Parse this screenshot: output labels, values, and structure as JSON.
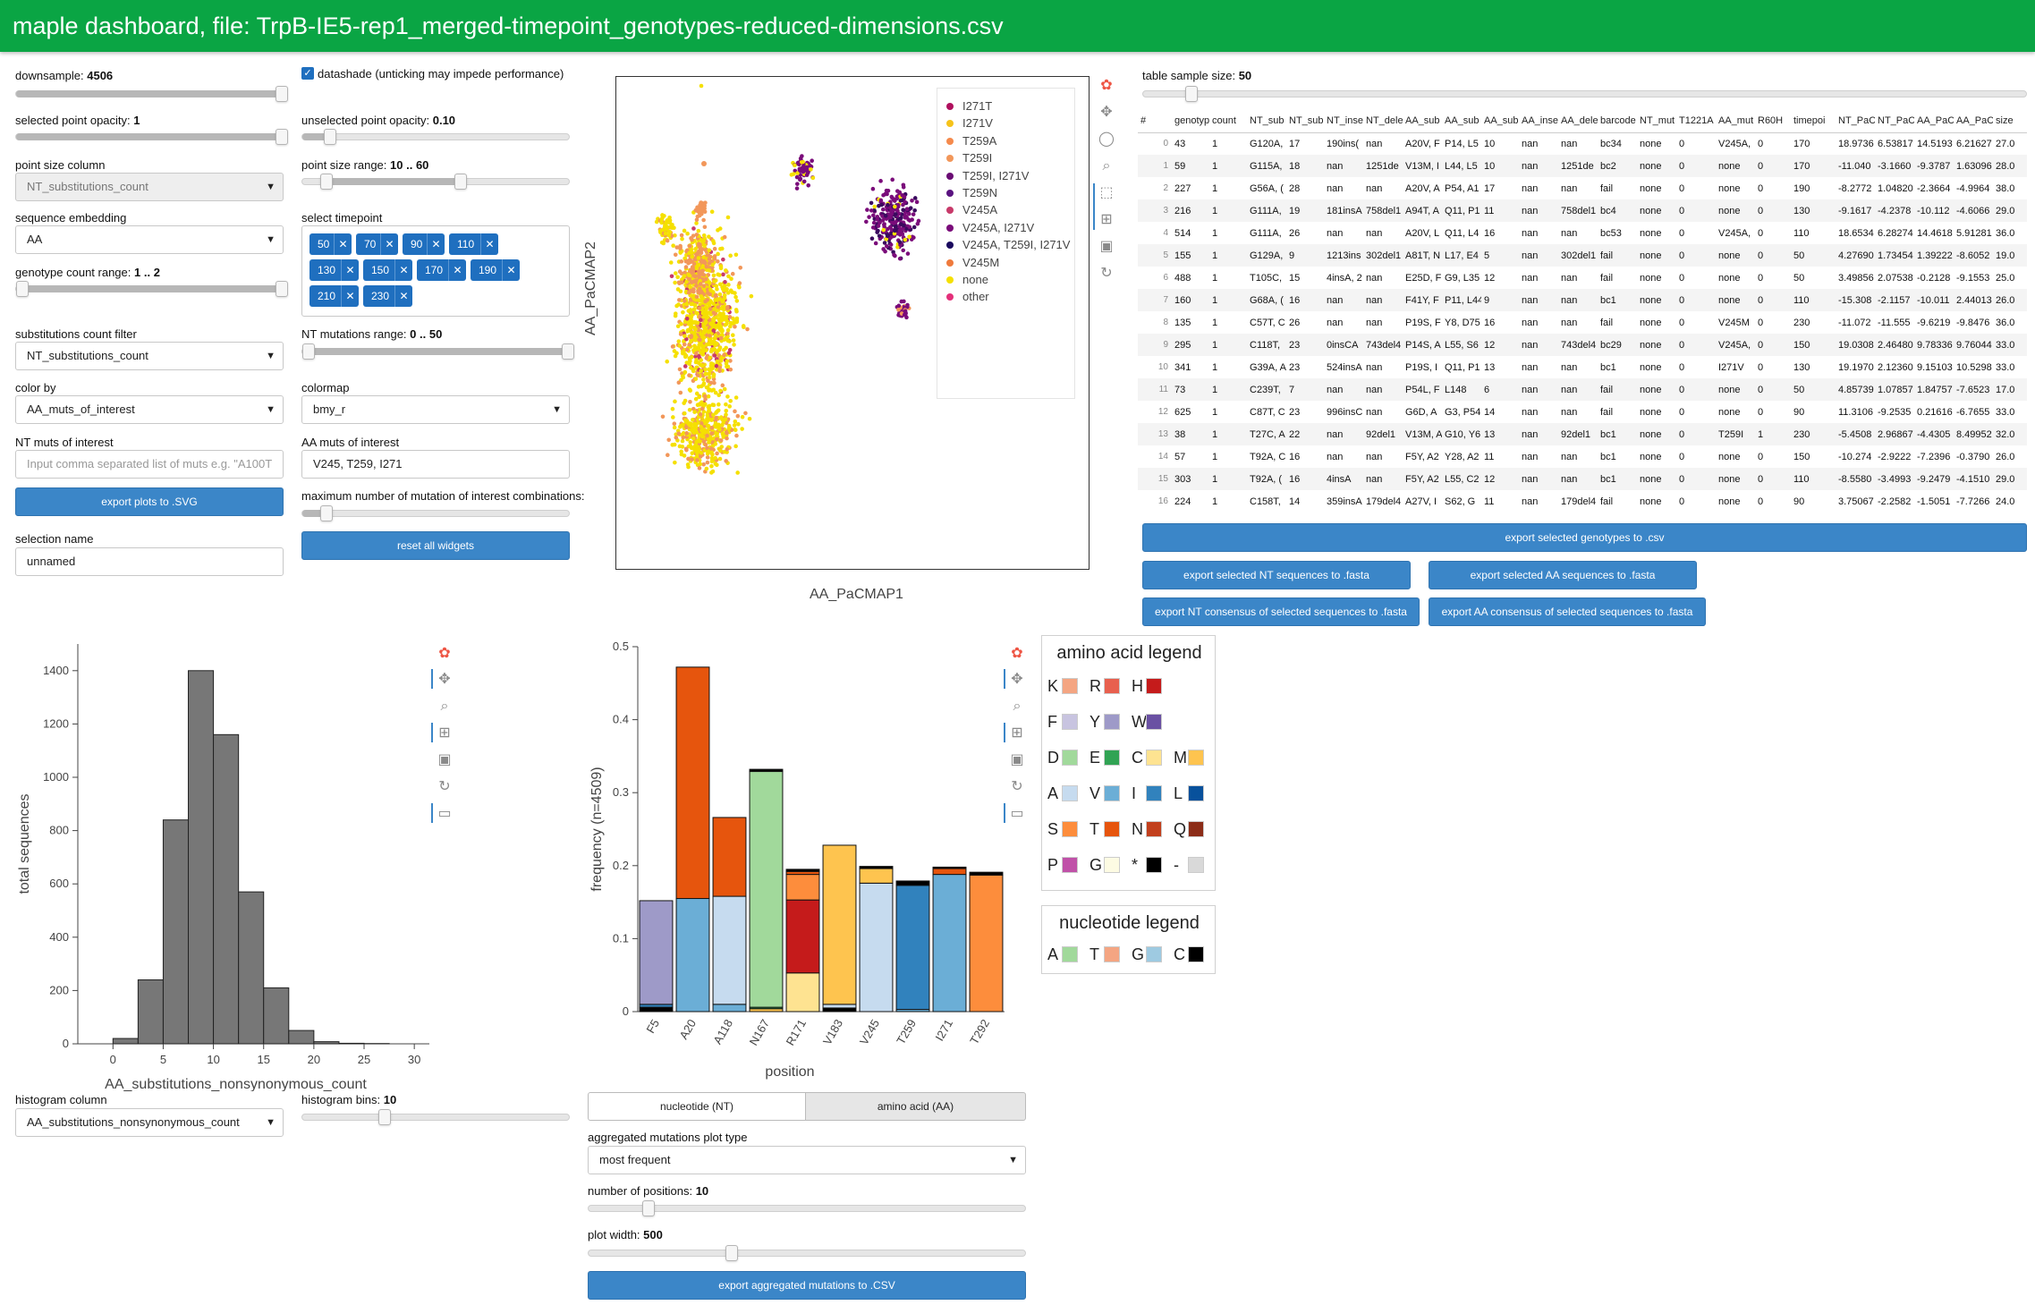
{
  "header": {
    "title": "maple dashboard, file: TrpB-IE5-rep1_merged-timepoint_genotypes-reduced-dimensions.csv"
  },
  "controls": {
    "downsample": {
      "label": "downsample:",
      "value": "4506",
      "fraction": 1.0
    },
    "datashade": {
      "label": "datashade (unticking may impede performance)",
      "checked": true
    },
    "selected_opacity": {
      "label": "selected point opacity:",
      "value": "1",
      "fraction": 1.0
    },
    "unselected_opacity": {
      "label": "unselected point opacity:",
      "value": "0.10",
      "fraction": 0.1
    },
    "point_size_column": {
      "label": "point size column",
      "value": "NT_substitutions_count"
    },
    "point_size_range": {
      "label": "point size range:",
      "value": "10 .. 60"
    },
    "sequence_embedding": {
      "label": "sequence embedding",
      "value": "AA"
    },
    "select_timepoint": {
      "label": "select timepoint",
      "chips": [
        "50",
        "70",
        "90",
        "110",
        "130",
        "150",
        "170",
        "190",
        "210",
        "230"
      ]
    },
    "genotype_count_range": {
      "label": "genotype count range:",
      "value": "1 .. 2"
    },
    "nt_mutations_range": {
      "label": "NT mutations range:",
      "value": "0 .. 50"
    },
    "substitutions_filter": {
      "label": "substitutions count filter",
      "value": "NT_substitutions_count"
    },
    "color_by": {
      "label": "color by",
      "value": "AA_muts_of_interest"
    },
    "colormap": {
      "label": "colormap",
      "value": "bmy_r"
    },
    "nt_muts": {
      "label": "NT muts of interest",
      "placeholder": "Input comma separated list of muts e.g. \"A100T"
    },
    "aa_muts": {
      "label": "AA muts of interest",
      "value": "V245, T259, I271"
    },
    "export_svg": "export plots to .SVG",
    "max_combos": {
      "label": "maximum number of mutation of interest combinations:"
    },
    "selection_name": {
      "label": "selection name",
      "value": "unnamed"
    },
    "reset": "reset all widgets"
  },
  "scatter": {
    "xlabel": "AA_PaCMAP1",
    "ylabel": "AA_PaCMAP2",
    "legend": [
      {
        "label": "I271T",
        "color": "#b0105e"
      },
      {
        "label": "I271V",
        "color": "#f6c31a"
      },
      {
        "label": "T259A",
        "color": "#f58a4c"
      },
      {
        "label": "T259I",
        "color": "#f2975a"
      },
      {
        "label": "T259I, I271V",
        "color": "#6a0d74"
      },
      {
        "label": "T259N",
        "color": "#5a1380"
      },
      {
        "label": "V245A",
        "color": "#c83a6a"
      },
      {
        "label": "V245A, I271V",
        "color": "#7a0c7a"
      },
      {
        "label": "V245A, T259I, I271V",
        "color": "#1a0a5e"
      },
      {
        "label": "V245M",
        "color": "#ef7a3c"
      },
      {
        "label": "none",
        "color": "#f5e000"
      },
      {
        "label": "other",
        "color": "#e4307a"
      }
    ]
  },
  "table": {
    "sample_label": "table sample size:",
    "sample_value": "50",
    "columns": [
      "#",
      "genotyp",
      "count",
      "NT_sub",
      "NT_sub",
      "NT_inse",
      "NT_dele",
      "AA_sub",
      "AA_sub",
      "AA_sub",
      "AA_inse",
      "AA_dele",
      "barcode",
      "NT_mut",
      "T1221A",
      "AA_mut",
      "R60H",
      "timepoi",
      "NT_PaC",
      "NT_PaC",
      "AA_PaC",
      "AA_PaC",
      "size"
    ],
    "rows": [
      [
        "0",
        "43",
        "1",
        "G120A,",
        "17",
        "190ins(",
        "nan",
        "A20V, F",
        "P14, L5",
        "10",
        "nan",
        "nan",
        "bc34",
        "none",
        "0",
        "V245A,",
        "0",
        "170",
        "18.9736",
        "6.53817",
        "14.5193",
        "6.21627",
        "27.0"
      ],
      [
        "1",
        "59",
        "1",
        "G115A,",
        "18",
        "nan",
        "1251de",
        "V13M, I",
        "L44, L5",
        "10",
        "nan",
        "1251de",
        "bc2",
        "none",
        "0",
        "none",
        "0",
        "170",
        "-11.040",
        "-3.1660",
        "-9.3787",
        "1.63096",
        "28.0"
      ],
      [
        "2",
        "227",
        "1",
        "G56A, (",
        "28",
        "nan",
        "nan",
        "A20V, A",
        "P54, A1",
        "17",
        "nan",
        "nan",
        "fail",
        "none",
        "0",
        "none",
        "0",
        "190",
        "-8.2772",
        "1.04820",
        "-2.3664",
        "-4.9964",
        "38.0"
      ],
      [
        "3",
        "216",
        "1",
        "G111A,",
        "19",
        "181insA",
        "758del1",
        "A94T, A",
        "Q11, P1",
        "11",
        "nan",
        "758del1",
        "bc4",
        "none",
        "0",
        "none",
        "0",
        "130",
        "-9.1617",
        "-4.2378",
        "-10.112",
        "-4.6066",
        "29.0"
      ],
      [
        "4",
        "514",
        "1",
        "G111A,",
        "26",
        "nan",
        "nan",
        "A20V, L",
        "Q11, L4",
        "16",
        "nan",
        "nan",
        "bc53",
        "none",
        "0",
        "V245A,",
        "0",
        "110",
        "18.6534",
        "6.28274",
        "14.4618",
        "5.91281",
        "36.0"
      ],
      [
        "5",
        "155",
        "1",
        "G129A,",
        "9",
        "1213ins",
        "302del1",
        "A81T, N",
        "L17, E4",
        "5",
        "nan",
        "302del1",
        "fail",
        "none",
        "0",
        "none",
        "0",
        "50",
        "4.27690",
        "1.73454",
        "1.39222",
        "-8.6052",
        "19.0"
      ],
      [
        "6",
        "488",
        "1",
        "T105C,",
        "15",
        "4insA, 2",
        "nan",
        "E25D, F",
        "G9, L35",
        "12",
        "nan",
        "nan",
        "fail",
        "none",
        "0",
        "none",
        "0",
        "50",
        "3.49856",
        "2.07538",
        "-0.2128",
        "-9.1553",
        "25.0"
      ],
      [
        "7",
        "160",
        "1",
        "G68A, (",
        "16",
        "nan",
        "nan",
        "F41Y, F",
        "P11, L44",
        "9",
        "nan",
        "nan",
        "bc1",
        "none",
        "0",
        "none",
        "0",
        "110",
        "-15.308",
        "-2.1157",
        "-10.011",
        "2.44013",
        "26.0"
      ],
      [
        "8",
        "135",
        "1",
        "C57T, C",
        "26",
        "nan",
        "nan",
        "P19S, F",
        "Y8, D75",
        "16",
        "nan",
        "nan",
        "fail",
        "none",
        "0",
        "V245M",
        "0",
        "230",
        "-11.072",
        "-11.555",
        "-9.6219",
        "-9.8476",
        "36.0"
      ],
      [
        "9",
        "295",
        "1",
        "C118T,",
        "23",
        "0insCA",
        "743del4",
        "P14S, A",
        "L55, S6",
        "12",
        "nan",
        "743del4",
        "bc29",
        "none",
        "0",
        "V245A,",
        "0",
        "150",
        "19.0308",
        "2.46480",
        "9.78336",
        "9.76044",
        "33.0"
      ],
      [
        "10",
        "341",
        "1",
        "G39A, A",
        "23",
        "524insA",
        "nan",
        "P19S, I",
        "Q11, P1",
        "13",
        "nan",
        "nan",
        "bc1",
        "none",
        "0",
        "I271V",
        "0",
        "130",
        "19.1970",
        "2.12360",
        "9.15103",
        "10.5298",
        "33.0"
      ],
      [
        "11",
        "73",
        "1",
        "C239T,",
        "7",
        "nan",
        "nan",
        "P54L, F",
        "L148",
        "6",
        "nan",
        "nan",
        "fail",
        "none",
        "0",
        "none",
        "0",
        "50",
        "4.85739",
        "1.07857",
        "1.84757",
        "-7.6523",
        "17.0"
      ],
      [
        "12",
        "625",
        "1",
        "C87T, C",
        "23",
        "996insC",
        "nan",
        "G6D, A",
        "G3, P54",
        "14",
        "nan",
        "nan",
        "fail",
        "none",
        "0",
        "none",
        "0",
        "90",
        "11.3106",
        "-9.2535",
        "0.21616",
        "-6.7655",
        "33.0"
      ],
      [
        "13",
        "38",
        "1",
        "T27C, A",
        "22",
        "nan",
        "92del1",
        "V13M, A",
        "G10, Y6",
        "13",
        "nan",
        "92del1",
        "bc1",
        "none",
        "0",
        "T259I",
        "1",
        "230",
        "-5.4508",
        "2.96867",
        "-4.4305",
        "8.49952",
        "32.0"
      ],
      [
        "14",
        "57",
        "1",
        "T92A, C",
        "16",
        "nan",
        "nan",
        "F5Y, A2",
        "Y28, A2",
        "11",
        "nan",
        "nan",
        "bc1",
        "none",
        "0",
        "none",
        "0",
        "150",
        "-10.274",
        "-2.9222",
        "-7.2396",
        "-0.3790",
        "26.0"
      ],
      [
        "15",
        "303",
        "1",
        "T92A, (",
        "16",
        "4insA",
        "nan",
        "F5Y, A2",
        "L55, C2",
        "12",
        "nan",
        "nan",
        "bc1",
        "none",
        "0",
        "none",
        "0",
        "110",
        "-8.5580",
        "-3.4993",
        "-9.2479",
        "-4.1510",
        "29.0"
      ],
      [
        "16",
        "224",
        "1",
        "C158T,",
        "14",
        "359insA",
        "179del4",
        "A27V, I",
        "S62, G",
        "11",
        "nan",
        "179del4",
        "fail",
        "none",
        "0",
        "none",
        "0",
        "90",
        "3.75067",
        "-2.2582",
        "-1.5051",
        "-7.7266",
        "24.0"
      ]
    ],
    "export_csv": "export selected genotypes to .csv",
    "export_nt_fasta": "export selected NT sequences to .fasta",
    "export_aa_fasta": "export selected AA sequences to .fasta",
    "export_nt_consensus": "export NT consensus of selected sequences to .fasta",
    "export_aa_consensus": "export AA consensus of selected sequences to .fasta"
  },
  "histogram": {
    "column_label": "histogram column",
    "column_value": "AA_substitutions_nonsynonymous_count",
    "bins_label": "histogram bins:",
    "bins_value": "10"
  },
  "aggregated": {
    "tab_nt": "nucleotide (NT)",
    "tab_aa": "amino acid (AA)",
    "plot_type_label": "aggregated mutations plot type",
    "plot_type_value": "most frequent",
    "npos_label": "number of positions:",
    "npos_value": "10",
    "width_label": "plot width:",
    "width_value": "500",
    "export": "export aggregated mutations to .CSV"
  },
  "aa_legend": {
    "title": "amino acid legend",
    "items": [
      {
        "aa": "K",
        "color": "#f4a582"
      },
      {
        "aa": "R",
        "color": "#e8604e"
      },
      {
        "aa": "H",
        "color": "#c51b1b"
      },
      {
        "aa": "F",
        "color": "#c8c4e0"
      },
      {
        "aa": "Y",
        "color": "#9e9ac8"
      },
      {
        "aa": "W",
        "color": "#6a51a3"
      },
      {
        "aa": "D",
        "color": "#a1d99b"
      },
      {
        "aa": "E",
        "color": "#31a354"
      },
      {
        "aa": "C",
        "color": "#fee391"
      },
      {
        "aa": "M",
        "color": "#fec44f"
      },
      {
        "aa": "A",
        "color": "#c6dbef"
      },
      {
        "aa": "V",
        "color": "#6baed6"
      },
      {
        "aa": "I",
        "color": "#3182bd"
      },
      {
        "aa": "L",
        "color": "#08519c"
      },
      {
        "aa": "S",
        "color": "#fd8d3c"
      },
      {
        "aa": "T",
        "color": "#e6550d"
      },
      {
        "aa": "N",
        "color": "#c2401d"
      },
      {
        "aa": "Q",
        "color": "#8c2d18"
      },
      {
        "aa": "P",
        "color": "#c051a8"
      },
      {
        "aa": "G",
        "color": "#fdfbe3"
      },
      {
        "aa": "*",
        "color": "#000000"
      },
      {
        "aa": "-",
        "color": "#d9d9d9"
      }
    ]
  },
  "nt_legend": {
    "title": "nucleotide legend",
    "items": [
      {
        "nt": "A",
        "color": "#a1d99b"
      },
      {
        "nt": "T",
        "color": "#f4a582"
      },
      {
        "nt": "G",
        "color": "#9ecae1"
      },
      {
        "nt": "C",
        "color": "#000000"
      }
    ]
  },
  "chart_data": [
    {
      "type": "bar",
      "title": "",
      "xlabel": "AA_substitutions_nonsynonymous_count",
      "ylabel": "total sequences",
      "bin_edges": [
        0,
        2.5,
        5,
        7.5,
        10,
        12.5,
        15,
        17.5,
        20,
        22.5,
        25,
        27.5
      ],
      "values": [
        20,
        240,
        840,
        1400,
        1160,
        570,
        210,
        50,
        8,
        2,
        1
      ],
      "xticks": [
        0,
        5,
        10,
        15,
        20,
        25,
        30
      ],
      "yticks": [
        0,
        200,
        400,
        600,
        800,
        1000,
        1200,
        1400
      ],
      "xlim": [
        -3.5,
        31.5
      ],
      "ylim": [
        0,
        1500
      ]
    },
    {
      "type": "bar",
      "stacked": true,
      "title": "",
      "xlabel": "position",
      "ylabel": "frequency (n=4509)",
      "categories": [
        "F5",
        "A20",
        "A118",
        "N167",
        "R171",
        "V183",
        "V245",
        "T259",
        "I271",
        "T292"
      ],
      "stacks": [
        [
          {
            "aa": "*",
            "v": 0.006
          },
          {
            "aa": "I",
            "v": 0.004
          },
          {
            "aa": "Y",
            "v": 0.142
          }
        ],
        [
          {
            "aa": "V",
            "v": 0.155
          },
          {
            "aa": "T",
            "v": 0.317
          }
        ],
        [
          {
            "aa": "V",
            "v": 0.01
          },
          {
            "aa": "A",
            "v": 0.148
          },
          {
            "aa": "T",
            "v": 0.108
          }
        ],
        [
          {
            "aa": "M",
            "v": 0.004
          },
          {
            "aa": "E",
            "v": 0.002
          },
          {
            "aa": "D",
            "v": 0.323
          },
          {
            "aa": "*",
            "v": 0.003
          }
        ],
        [
          {
            "aa": "C",
            "v": 0.053
          },
          {
            "aa": "H",
            "v": 0.1
          },
          {
            "aa": "S",
            "v": 0.035
          },
          {
            "aa": "T",
            "v": 0.004
          },
          {
            "aa": "*",
            "v": 0.003
          }
        ],
        [
          {
            "aa": "*",
            "v": 0.005
          },
          {
            "aa": "A",
            "v": 0.005
          },
          {
            "aa": "M",
            "v": 0.218
          }
        ],
        [
          {
            "aa": "A",
            "v": 0.176
          },
          {
            "aa": "M",
            "v": 0.02
          },
          {
            "aa": "*",
            "v": 0.003
          }
        ],
        [
          {
            "aa": "V",
            "v": 0.003
          },
          {
            "aa": "I",
            "v": 0.17
          },
          {
            "aa": "*",
            "v": 0.006
          }
        ],
        [
          {
            "aa": "V",
            "v": 0.188
          },
          {
            "aa": "T",
            "v": 0.008
          },
          {
            "aa": "*",
            "v": 0.002
          }
        ],
        [
          {
            "aa": "S",
            "v": 0.187
          },
          {
            "aa": "*",
            "v": 0.004
          }
        ]
      ],
      "yticks": [
        0,
        0.1,
        0.2,
        0.3,
        0.4,
        0.5
      ],
      "ylim": [
        0,
        0.5
      ]
    }
  ]
}
